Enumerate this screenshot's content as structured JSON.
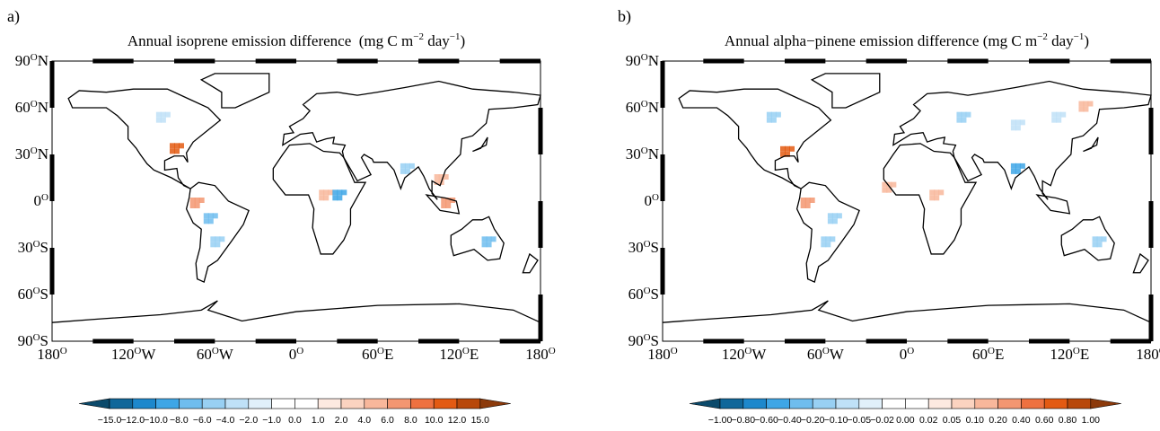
{
  "panels": [
    {
      "label": "a)",
      "title": {
        "text": "Annual isoprene emission difference  (mg C m",
        "exp1": "−2",
        "mid": " day",
        "exp2": "−1",
        "end": ")"
      },
      "lat_labels": [
        {
          "num": "90",
          "sup": "O",
          "hem": "N"
        },
        {
          "num": "60",
          "sup": "O",
          "hem": "N"
        },
        {
          "num": "30",
          "sup": "O",
          "hem": "N"
        },
        {
          "num": "0",
          "sup": "O"
        },
        {
          "num": "30",
          "sup": "O",
          "hem": "S"
        },
        {
          "num": "60",
          "sup": "O",
          "hem": "S"
        },
        {
          "num": "90",
          "sup": "O",
          "hem": "S"
        }
      ],
      "lon_labels": [
        {
          "num": "180",
          "sup": "O"
        },
        {
          "num": "120",
          "sup": "O",
          "hem": "W"
        },
        {
          "num": "60",
          "sup": "O",
          "hem": "W"
        },
        {
          "num": "0",
          "sup": "O"
        },
        {
          "num": "60",
          "sup": "O",
          "hem": "E"
        },
        {
          "num": "120",
          "sup": "O",
          "hem": "E"
        },
        {
          "num": "180",
          "sup": "O"
        }
      ],
      "colorbar": {
        "labels": [
          "−15.0",
          "−12.0",
          "−10.0",
          "−8.0",
          "−6.0",
          "−4.0",
          "−2.0",
          "−1.0",
          "0.0",
          "1.0",
          "2.0",
          "4.0",
          "6.0",
          "8.0",
          "10.0",
          "12.0",
          "15.0"
        ]
      }
    },
    {
      "label": "b)",
      "title": {
        "text": "Annual alpha−pinene emission difference (mg C m",
        "exp1": "−2",
        "mid": " day",
        "exp2": "−1",
        "end": ")"
      },
      "lat_labels": [
        {
          "num": "90",
          "sup": "O",
          "hem": "N"
        },
        {
          "num": "60",
          "sup": "O",
          "hem": "N"
        },
        {
          "num": "30",
          "sup": "O",
          "hem": "N"
        },
        {
          "num": "0",
          "sup": "O"
        },
        {
          "num": "30",
          "sup": "O",
          "hem": "S"
        },
        {
          "num": "60",
          "sup": "O",
          "hem": "S"
        },
        {
          "num": "90",
          "sup": "O",
          "hem": "S"
        }
      ],
      "lon_labels": [
        {
          "num": "180",
          "sup": "O"
        },
        {
          "num": "120",
          "sup": "O",
          "hem": "W"
        },
        {
          "num": "60",
          "sup": "O",
          "hem": "W"
        },
        {
          "num": "0",
          "sup": "O"
        },
        {
          "num": "60",
          "sup": "O",
          "hem": "E"
        },
        {
          "num": "120",
          "sup": "O",
          "hem": "E"
        },
        {
          "num": "180",
          "sup": "O"
        }
      ],
      "colorbar": {
        "labels": [
          "−1.00",
          "−0.80",
          "−0.60",
          "−0.40",
          "−0.20",
          "−0.10",
          "−0.05",
          "−0.02",
          "0.00",
          "0.02",
          "0.05",
          "0.10",
          "0.20",
          "0.40",
          "0.60",
          "0.80",
          "1.00"
        ]
      }
    }
  ],
  "colorbar_colors": [
    "#0b4a6b",
    "#10679a",
    "#1d88cc",
    "#3ea6e6",
    "#6fbdee",
    "#98d0f3",
    "#bfe1f7",
    "#e1f0fa",
    "#ffffff",
    "#ffffff",
    "#fde9e0",
    "#fbd3c0",
    "#f8b79b",
    "#f39671",
    "#ee7140",
    "#e35a12",
    "#b8480a",
    "#8c3a0b"
  ]
}
